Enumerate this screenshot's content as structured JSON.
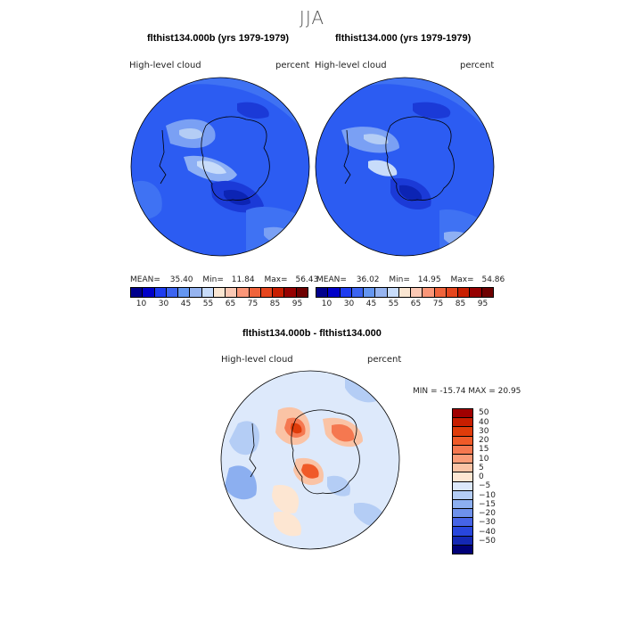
{
  "figure": {
    "season_title": "JJA"
  },
  "panels": [
    {
      "title": "flthist134.000b (yrs 1979-1979)",
      "left_label": "High-level cloud",
      "right_label": "percent",
      "stats": {
        "mean_label": "MEAN=",
        "mean": "35.40",
        "min_label": "Min=",
        "min": "11.84",
        "max_label": "Max=",
        "max": "56.43"
      }
    },
    {
      "title": "flthist134.000 (yrs 1979-1979)",
      "left_label": "High-level cloud",
      "right_label": "percent",
      "stats": {
        "mean_label": "MEAN=",
        "mean": "36.02",
        "min_label": "Min=",
        "min": "14.95",
        "max_label": "Max=",
        "max": "54.86"
      }
    }
  ],
  "abs_colorbar": {
    "colors": [
      "#00008c",
      "#0000c8",
      "#1e3cf0",
      "#3c64f0",
      "#6496f0",
      "#96b4f0",
      "#c8dcfa",
      "#fae6d2",
      "#fac8b4",
      "#fa9678",
      "#f0643c",
      "#e6461e",
      "#c81e00",
      "#960000",
      "#6e0000"
    ],
    "tick_labels": [
      "10",
      "30",
      "45",
      "55",
      "65",
      "75",
      "85",
      "95"
    ]
  },
  "diff_panel": {
    "title": "flthist134.000b - flthist134.000",
    "left_label": "High-level cloud",
    "right_label": "percent",
    "stats": "MIN = -15.74  MAX =  20.95",
    "colorbar": {
      "colors_top_to_bottom": [
        "#a00000",
        "#c81e00",
        "#e03c0a",
        "#f05a28",
        "#f57850",
        "#fa9c78",
        "#fac3a5",
        "#fde6d2",
        "#dce8fa",
        "#b4cdf5",
        "#8caff0",
        "#6e91eb",
        "#4664e6",
        "#2846dc",
        "#1428b4",
        "#000078"
      ],
      "labels_top_to_bottom": [
        "50",
        "40",
        "30",
        "20",
        "15",
        "10",
        "5",
        "0",
        "−5",
        "−10",
        "−15",
        "−20",
        "−30",
        "−40",
        "−50"
      ]
    }
  },
  "colors": {
    "map_base_blue": "#2c5cf2",
    "map_mid_blue": "#3f72f3",
    "map_light_blue": "#8eb0f4",
    "map_dark_blue": "#1b3ad7",
    "diff_base": "#dde9fb",
    "diff_warm": "#f9b99e"
  }
}
